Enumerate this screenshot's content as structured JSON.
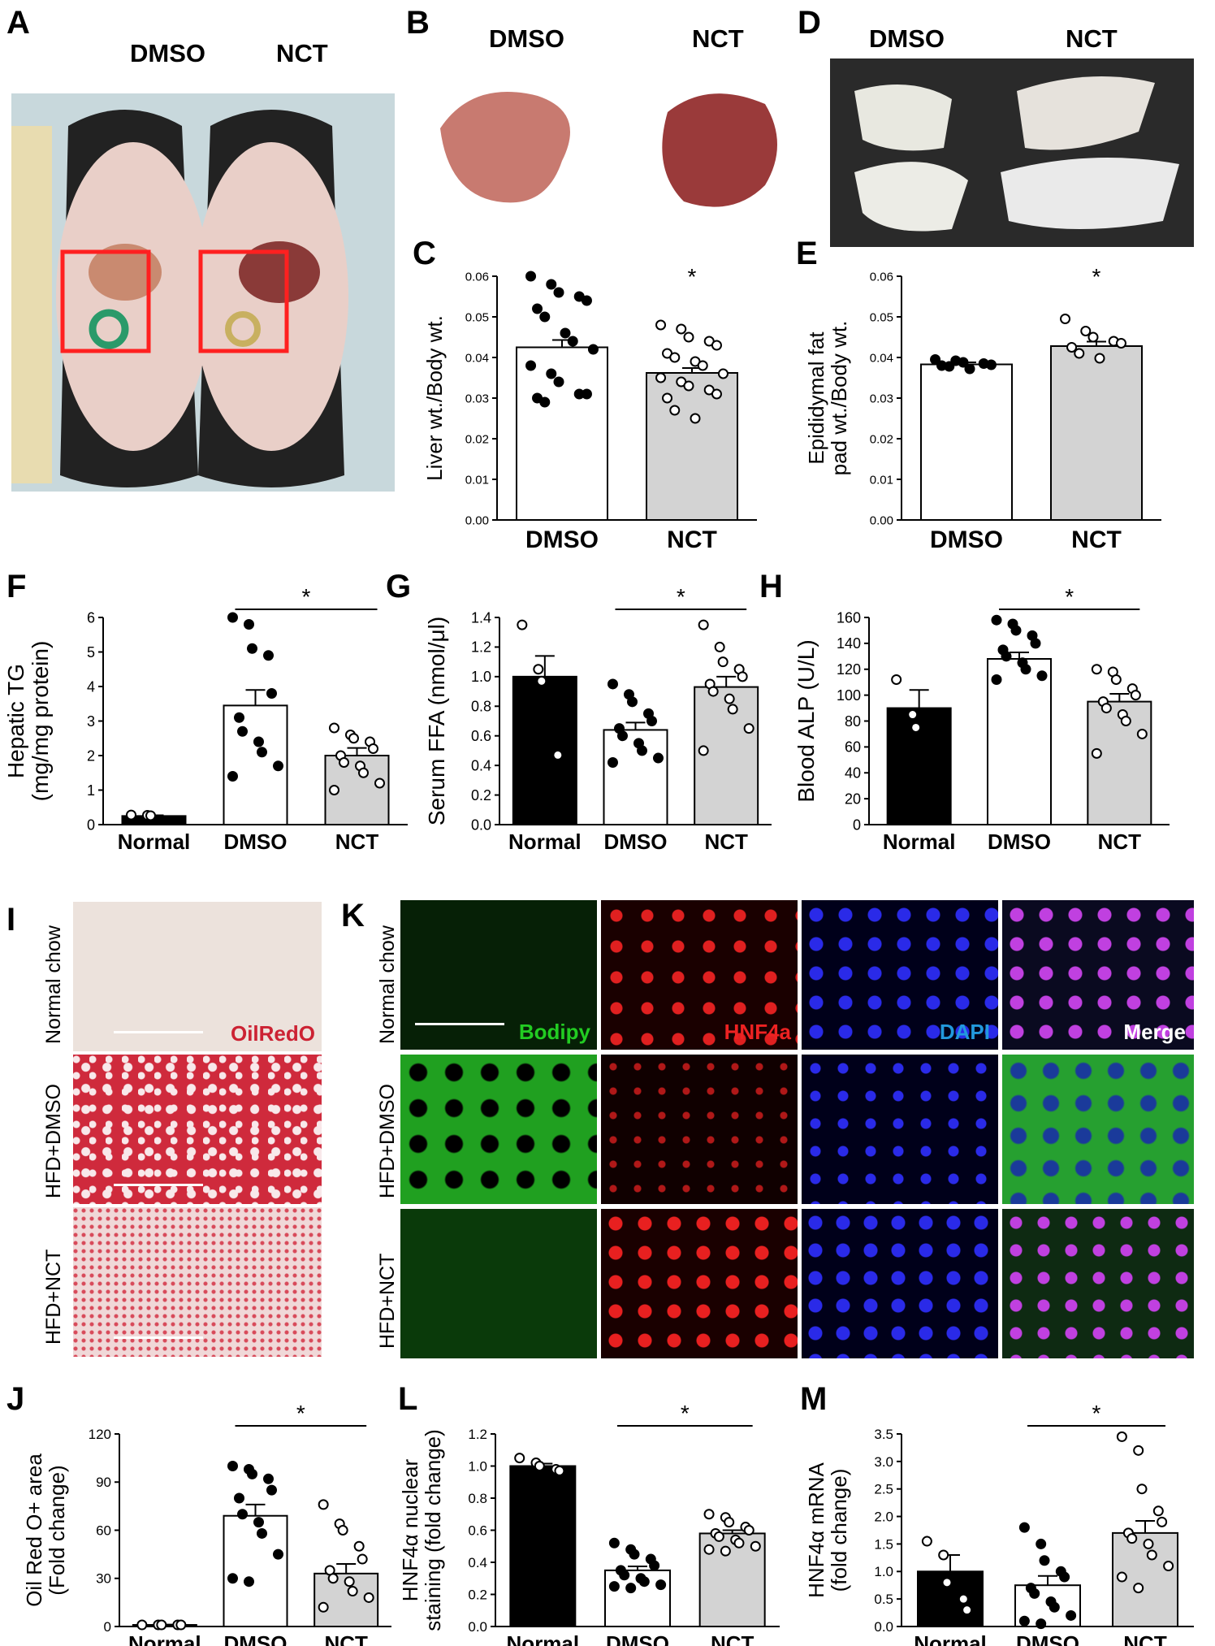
{
  "colors": {
    "normal_bar": "#000000",
    "dmso_bar": "#ffffff",
    "nct_bar": "#d3d3d3",
    "oilred": "#cc2233",
    "bodipy": "#22cc22",
    "hnf4a": "#ee2222",
    "dapi": "#2299dd",
    "merge": "#ffffff",
    "roi_box": "#ff2020"
  },
  "panels": {
    "A": {
      "letter": "A",
      "labels": [
        "DMSO",
        "NCT"
      ]
    },
    "B": {
      "letter": "B",
      "labels": [
        "DMSO",
        "NCT"
      ]
    },
    "D": {
      "letter": "D",
      "labels": [
        "DMSO",
        "NCT"
      ]
    },
    "I": {
      "letter": "I",
      "rows": [
        "Normal chow",
        "HFD+DMSO",
        "HFD+NCT"
      ],
      "stain": "OilRedO"
    },
    "K": {
      "letter": "K",
      "rows": [
        "Normal chow",
        "HFD+DMSO",
        "HFD+NCT"
      ],
      "channels": [
        "Bodipy",
        "HNF4a",
        "DAPI",
        "Merge"
      ]
    }
  },
  "chart_data": [
    {
      "id": "C",
      "letter": "C",
      "type": "bar",
      "categories": [
        "DMSO",
        "NCT"
      ],
      "ylabel": "Liver wt./Body wt.",
      "ylim": [
        0,
        0.06
      ],
      "ticks": [
        "0.00",
        "0.01",
        "0.02",
        "0.03",
        "0.04",
        "0.05",
        "0.06"
      ],
      "values": [
        0.0425,
        0.0362
      ],
      "sem": [
        0.0018,
        0.0012
      ],
      "points": [
        [
          0.06,
          0.058,
          0.056,
          0.055,
          0.054,
          0.052,
          0.05,
          0.046,
          0.044,
          0.042,
          0.038,
          0.036,
          0.034,
          0.031,
          0.031,
          0.03,
          0.029
        ],
        [
          0.048,
          0.047,
          0.045,
          0.044,
          0.043,
          0.041,
          0.04,
          0.039,
          0.038,
          0.036,
          0.035,
          0.034,
          0.033,
          0.032,
          0.031,
          0.03,
          0.027,
          0.025
        ]
      ],
      "significance": "*"
    },
    {
      "id": "E",
      "letter": "E",
      "type": "bar",
      "categories": [
        "DMSO",
        "NCT"
      ],
      "ylabel": "Epididymal fat pad wt./Body wt.",
      "ylim": [
        0,
        0.06
      ],
      "ticks": [
        "0.00",
        "0.01",
        "0.02",
        "0.03",
        "0.04",
        "0.05",
        "0.06"
      ],
      "values": [
        0.0383,
        0.0428
      ],
      "sem": [
        0.0005,
        0.0011
      ],
      "points": [
        [
          0.0395,
          0.0392,
          0.0388,
          0.0385,
          0.0382,
          0.038,
          0.0378,
          0.0372
        ],
        [
          0.0495,
          0.0465,
          0.045,
          0.044,
          0.0435,
          0.0425,
          0.041,
          0.0398
        ]
      ],
      "significance": "*"
    },
    {
      "id": "F",
      "letter": "F",
      "type": "bar",
      "categories": [
        "Normal",
        "DMSO",
        "NCT"
      ],
      "ylabel": "Hepatic TG (mg/mg protein)",
      "ylim": [
        0,
        6
      ],
      "ticks": [
        "0",
        "1",
        "2",
        "3",
        "4",
        "5",
        "6"
      ],
      "values": [
        0.25,
        3.45,
        2.0
      ],
      "sem": [
        0.02,
        0.45,
        0.22
      ],
      "points": [
        [
          0.28,
          0.27,
          0.26
        ],
        [
          6.0,
          5.8,
          5.1,
          4.9,
          3.8,
          3.1,
          2.7,
          2.4,
          2.1,
          1.7,
          1.4
        ],
        [
          2.8,
          2.6,
          2.5,
          2.4,
          2.2,
          2.0,
          1.8,
          1.7,
          1.5,
          1.2,
          1.0
        ]
      ],
      "significance": "*",
      "sig_between": [
        1,
        2
      ]
    },
    {
      "id": "G",
      "letter": "G",
      "type": "bar",
      "categories": [
        "Normal",
        "DMSO",
        "NCT"
      ],
      "ylabel": "Serum FFA (nmol/μl)",
      "ylim": [
        0,
        1.4
      ],
      "ticks": [
        "0.0",
        "0.2",
        "0.4",
        "0.6",
        "0.8",
        "1.0",
        "1.2",
        "1.4"
      ],
      "values": [
        1.0,
        0.64,
        0.93
      ],
      "sem": [
        0.14,
        0.05,
        0.07
      ],
      "points": [
        [
          1.35,
          1.05,
          0.97,
          0.47
        ],
        [
          0.95,
          0.88,
          0.83,
          0.75,
          0.7,
          0.65,
          0.6,
          0.55,
          0.5,
          0.45,
          0.42
        ],
        [
          1.35,
          1.2,
          1.1,
          1.05,
          1.0,
          0.95,
          0.9,
          0.85,
          0.78,
          0.65,
          0.5
        ]
      ],
      "significance": "*",
      "sig_between": [
        1,
        2
      ]
    },
    {
      "id": "H",
      "letter": "H",
      "type": "bar",
      "categories": [
        "Normal",
        "DMSO",
        "NCT"
      ],
      "ylabel": "Blood ALP (U/L)",
      "ylim": [
        0,
        160
      ],
      "ticks": [
        "0",
        "20",
        "40",
        "60",
        "80",
        "100",
        "120",
        "140",
        "160"
      ],
      "values": [
        90,
        128,
        95
      ],
      "sem": [
        14,
        5,
        6
      ],
      "points": [
        [
          112,
          85,
          75
        ],
        [
          158,
          155,
          150,
          146,
          140,
          135,
          130,
          125,
          120,
          115,
          112
        ],
        [
          120,
          118,
          112,
          105,
          100,
          95,
          90,
          85,
          80,
          70,
          55
        ]
      ],
      "significance": "*",
      "sig_between": [
        1,
        2
      ]
    },
    {
      "id": "J",
      "letter": "J",
      "type": "bar",
      "categories": [
        "Normal",
        "DMSO",
        "NCT"
      ],
      "ylabel": "Oil Red O+ area (Fold change)",
      "ylim": [
        0,
        120
      ],
      "ticks": [
        "0",
        "30",
        "60",
        "90",
        "120"
      ],
      "values": [
        1,
        69,
        33
      ],
      "sem": [
        0.2,
        7,
        6
      ],
      "points": [
        [
          1,
          1,
          1,
          1,
          1
        ],
        [
          100,
          98,
          95,
          92,
          85,
          80,
          70,
          65,
          58,
          45,
          30,
          28
        ],
        [
          76,
          64,
          60,
          50,
          42,
          35,
          30,
          28,
          22,
          18,
          12
        ]
      ],
      "significance": "*",
      "sig_between": [
        1,
        2
      ]
    },
    {
      "id": "L",
      "letter": "L",
      "type": "bar",
      "categories": [
        "Normal",
        "DMSO",
        "NCT"
      ],
      "ylabel": "HNF4α nuclear staining (fold change)",
      "ylim": [
        0,
        1.2
      ],
      "ticks": [
        "0.0",
        "0.2",
        "0.4",
        "0.6",
        "0.8",
        "1.0",
        "1.2"
      ],
      "values": [
        1.0,
        0.35,
        0.58
      ],
      "sem": [
        0.015,
        0.025,
        0.02
      ],
      "points": [
        [
          1.05,
          1.02,
          1.0,
          0.98,
          0.97
        ],
        [
          0.52,
          0.48,
          0.45,
          0.42,
          0.38,
          0.35,
          0.32,
          0.3,
          0.28,
          0.26,
          0.25,
          0.24
        ],
        [
          0.7,
          0.68,
          0.65,
          0.62,
          0.6,
          0.58,
          0.56,
          0.54,
          0.52,
          0.5,
          0.48,
          0.47
        ]
      ],
      "significance": "*",
      "sig_between": [
        1,
        2
      ]
    },
    {
      "id": "M",
      "letter": "M",
      "type": "bar",
      "categories": [
        "Normal",
        "DMSO",
        "NCT"
      ],
      "ylabel": "HNF4α mRNA (fold change)",
      "ylim": [
        0,
        3.5
      ],
      "ticks": [
        "0.0",
        "0.5",
        "1.0",
        "1.5",
        "2.0",
        "2.5",
        "3.0",
        "3.5"
      ],
      "values": [
        1.0,
        0.75,
        1.7
      ],
      "sem": [
        0.3,
        0.17,
        0.22
      ],
      "points": [
        [
          1.55,
          1.3,
          0.8,
          0.5,
          0.3
        ],
        [
          1.8,
          1.5,
          1.2,
          1.0,
          0.9,
          0.7,
          0.6,
          0.45,
          0.35,
          0.2,
          0.1,
          0.05
        ],
        [
          3.45,
          3.2,
          2.5,
          2.1,
          1.9,
          1.7,
          1.6,
          1.5,
          1.3,
          1.1,
          0.9,
          0.7
        ]
      ],
      "significance": "*",
      "sig_between": [
        1,
        2
      ]
    }
  ]
}
